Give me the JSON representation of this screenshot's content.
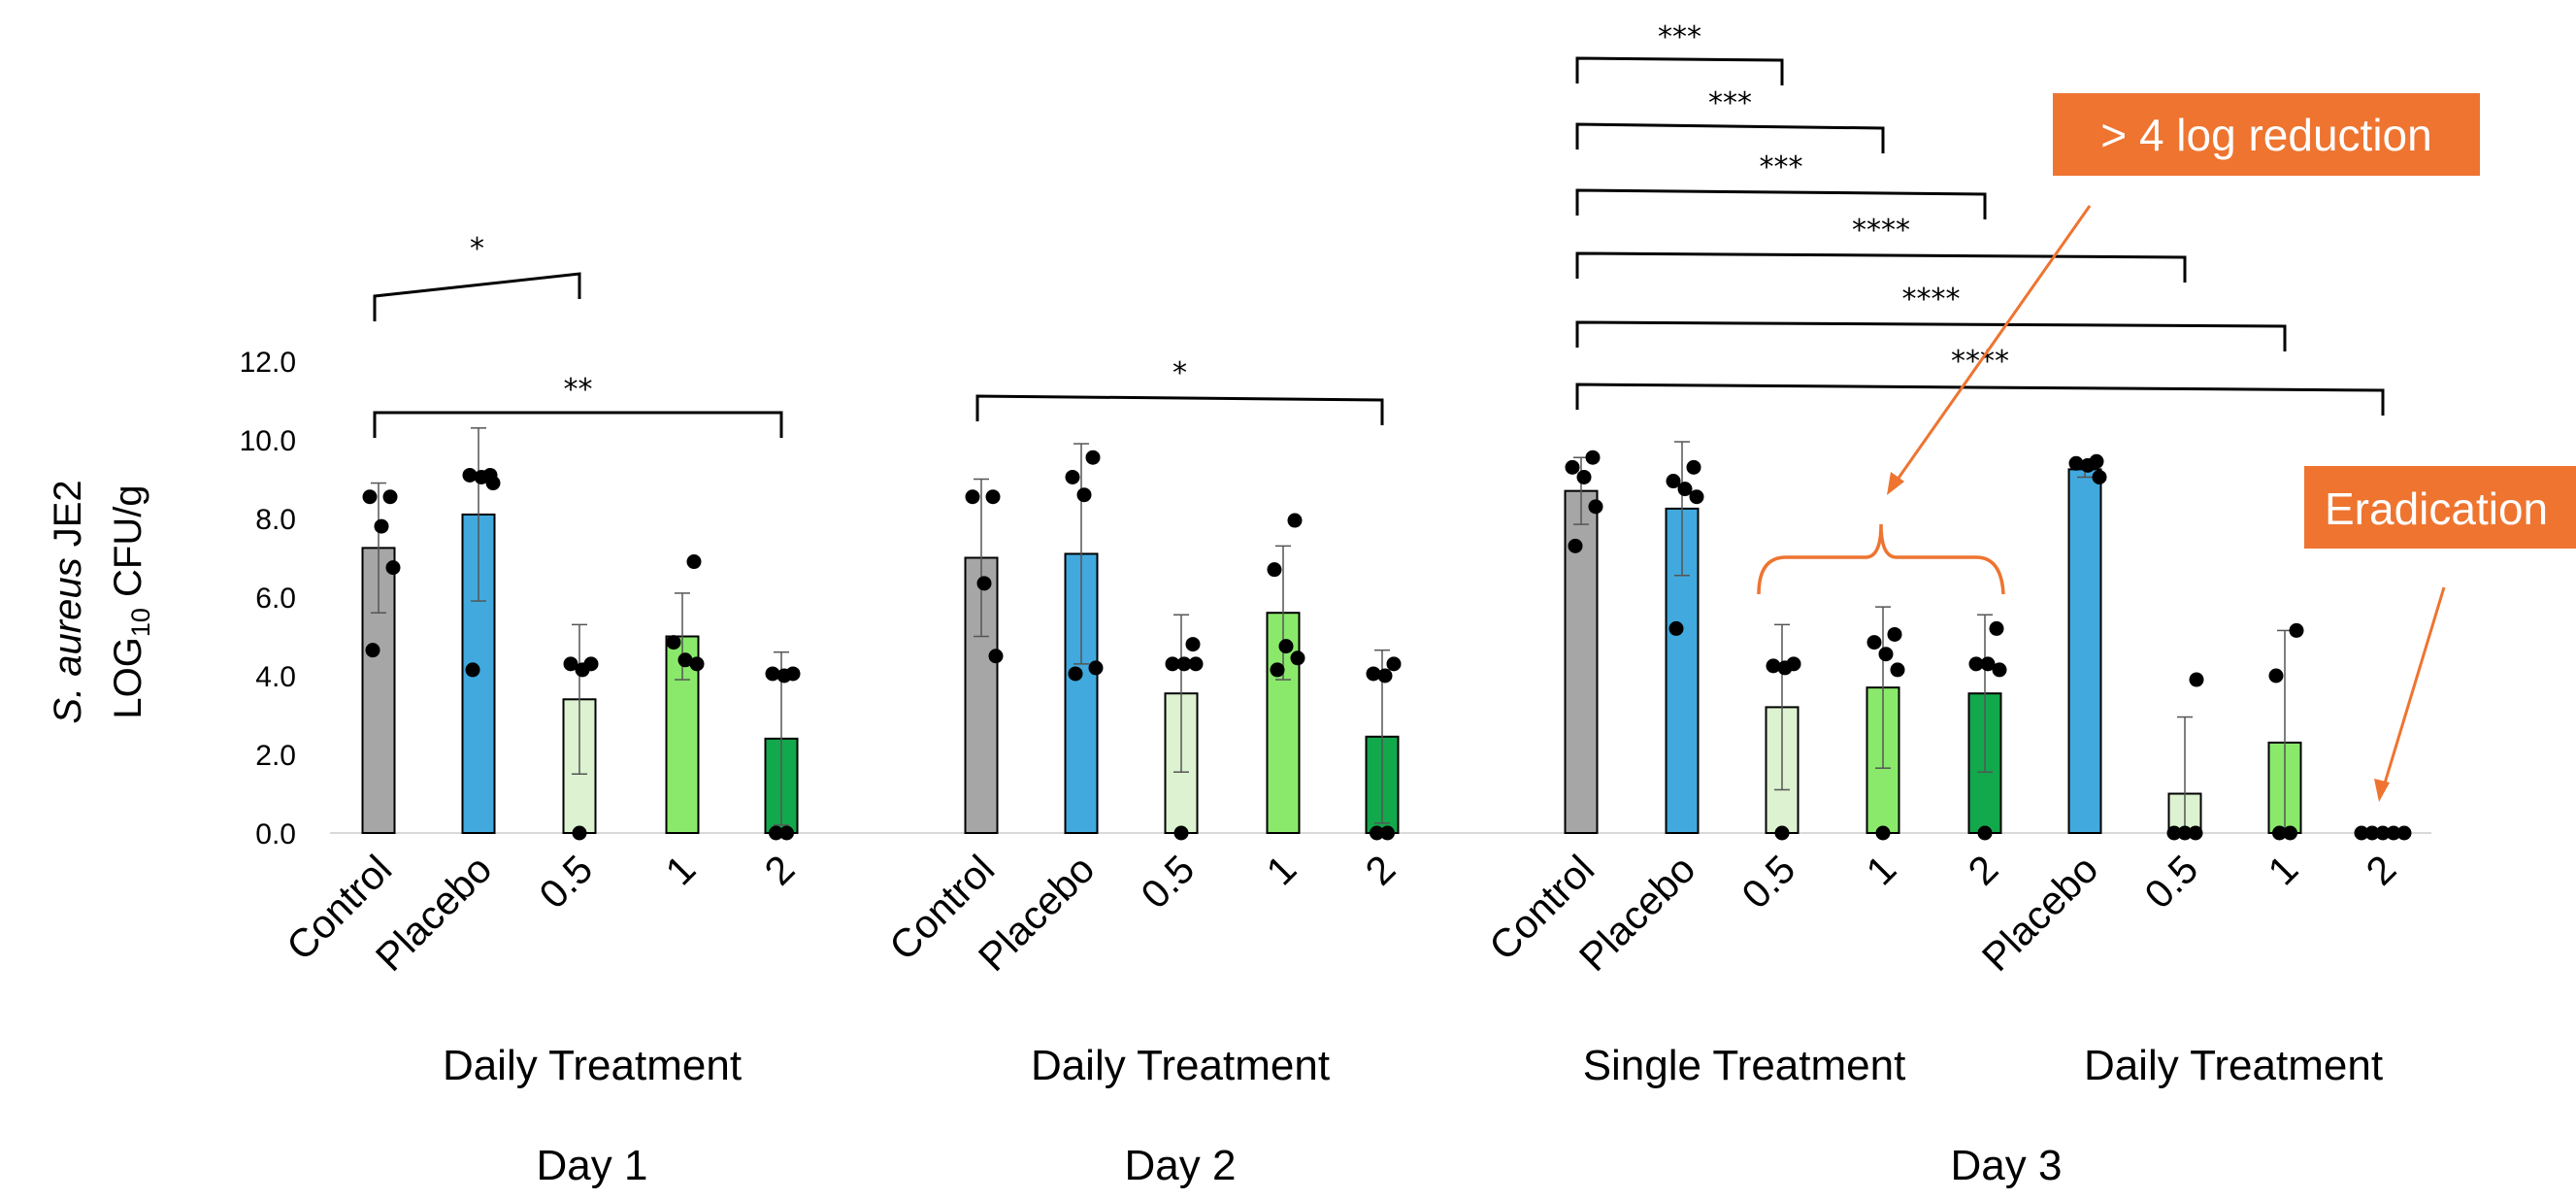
{
  "chart_data": {
    "type": "bar",
    "y_axis": {
      "label_species_italic": "S. aureus",
      "label_species_rest": " JE2",
      "label_log_prefix": "LOG",
      "label_log_subscript": "10",
      "label_log_suffix": " CFU/g",
      "ylim": [
        0,
        12
      ],
      "ticks": [
        "0.0",
        "2.0",
        "4.0",
        "6.0",
        "8.0",
        "10.0",
        "12.0"
      ],
      "tick_values": [
        0,
        2,
        4,
        6,
        8,
        10,
        12
      ],
      "grid": false
    },
    "colors": {
      "Control": "#a6a6a6",
      "Placebo": "#41a9dd",
      "0.5": "#dcf2d0",
      "1": "#8ae96b",
      "2": "#12a84c",
      "point": "#000000",
      "callout": "#ee7430"
    },
    "bars": [
      {
        "label": "Control",
        "kind": "Control",
        "mean": 7.25,
        "error": 1.65,
        "points": [
          8.55,
          8.55,
          7.8,
          6.75,
          4.65
        ]
      },
      {
        "label": "Placebo",
        "kind": "Placebo",
        "mean": 8.1,
        "error": 2.2,
        "points": [
          9.1,
          9.1,
          9.05,
          8.9,
          4.15
        ]
      },
      {
        "label": "0.5",
        "kind": "0.5",
        "mean": 3.4,
        "error": 1.9,
        "points": [
          4.3,
          4.3,
          4.15,
          0
        ]
      },
      {
        "label": "1",
        "kind": "1",
        "mean": 5.0,
        "error": 1.1,
        "points": [
          6.9,
          4.85,
          4.4,
          4.3
        ]
      },
      {
        "label": "2",
        "kind": "2",
        "mean": 2.4,
        "error": 2.2,
        "points": [
          4.05,
          4.05,
          4.0,
          0,
          0
        ]
      },
      {
        "label": "Control",
        "kind": "Control",
        "mean": 7.0,
        "error": 2.0,
        "points": [
          8.55,
          8.55,
          6.35,
          4.5
        ]
      },
      {
        "label": "Placebo",
        "kind": "Placebo",
        "mean": 7.1,
        "error": 2.8,
        "points": [
          9.55,
          9.05,
          8.6,
          4.2,
          4.05
        ]
      },
      {
        "label": "0.5",
        "kind": "0.5",
        "mean": 3.55,
        "error": 2.0,
        "points": [
          4.8,
          4.3,
          4.3,
          4.3,
          0
        ]
      },
      {
        "label": "1",
        "kind": "1",
        "mean": 5.6,
        "error": 1.7,
        "points": [
          7.95,
          6.7,
          4.75,
          4.45,
          4.15
        ]
      },
      {
        "label": "2",
        "kind": "2",
        "mean": 2.45,
        "error": 2.2,
        "points": [
          4.3,
          4.05,
          4.0,
          0,
          0
        ]
      },
      {
        "label": "Control",
        "kind": "Control",
        "mean": 8.7,
        "error": 0.85,
        "points": [
          9.55,
          9.3,
          9.05,
          8.3,
          7.3
        ]
      },
      {
        "label": "Placebo",
        "kind": "Placebo",
        "mean": 8.25,
        "error": 1.7,
        "points": [
          9.3,
          8.95,
          8.75,
          8.55,
          5.2
        ]
      },
      {
        "label": "0.5",
        "kind": "0.5",
        "mean": 3.2,
        "error": 2.1,
        "points": [
          4.3,
          4.25,
          4.2,
          0
        ]
      },
      {
        "label": "1",
        "kind": "1",
        "mean": 3.7,
        "error": 2.05,
        "points": [
          5.05,
          4.85,
          4.55,
          4.15,
          0
        ]
      },
      {
        "label": "2",
        "kind": "2",
        "mean": 3.55,
        "error": 2.0,
        "points": [
          5.2,
          4.3,
          4.3,
          4.15,
          0
        ]
      },
      {
        "label": "Placebo",
        "kind": "Placebo",
        "mean": 9.25,
        "error": 0.2,
        "points": [
          9.45,
          9.4,
          9.35,
          9.05
        ]
      },
      {
        "label": "0.5",
        "kind": "0.5",
        "mean": 1.0,
        "error": 1.95,
        "points": [
          3.9,
          0,
          0,
          0
        ]
      },
      {
        "label": "1",
        "kind": "1",
        "mean": 2.3,
        "error": 2.85,
        "points": [
          5.15,
          4.0,
          0,
          0
        ]
      },
      {
        "label": "2",
        "kind": "2",
        "mean": 0,
        "error": 0,
        "points": [
          0,
          0,
          0,
          0,
          0
        ]
      }
    ],
    "treatment_labels": [
      "Daily Treatment",
      "Daily Treatment",
      "Single Treatment",
      "Daily Treatment"
    ],
    "day_labels": [
      "Day 1",
      "Day 2",
      "Day 3"
    ],
    "significance": [
      {
        "from": 0,
        "to": 2,
        "stars": "*"
      },
      {
        "from": 0,
        "to": 4,
        "stars": "**"
      },
      {
        "from": 5,
        "to": 9,
        "stars": "*"
      },
      {
        "from": 10,
        "to": 12,
        "stars": "***"
      },
      {
        "from": 10,
        "to": 13,
        "stars": "***"
      },
      {
        "from": 10,
        "to": 14,
        "stars": "***"
      },
      {
        "from": 10,
        "to": 16,
        "stars": "****"
      },
      {
        "from": 10,
        "to": 17,
        "stars": "****"
      },
      {
        "from": 10,
        "to": 18,
        "stars": "****"
      }
    ],
    "annotations": [
      {
        "text": "> 4 log reduction",
        "points_to": [
          12,
          14
        ]
      },
      {
        "text": "Eradication",
        "points_to": [
          18
        ]
      }
    ]
  }
}
